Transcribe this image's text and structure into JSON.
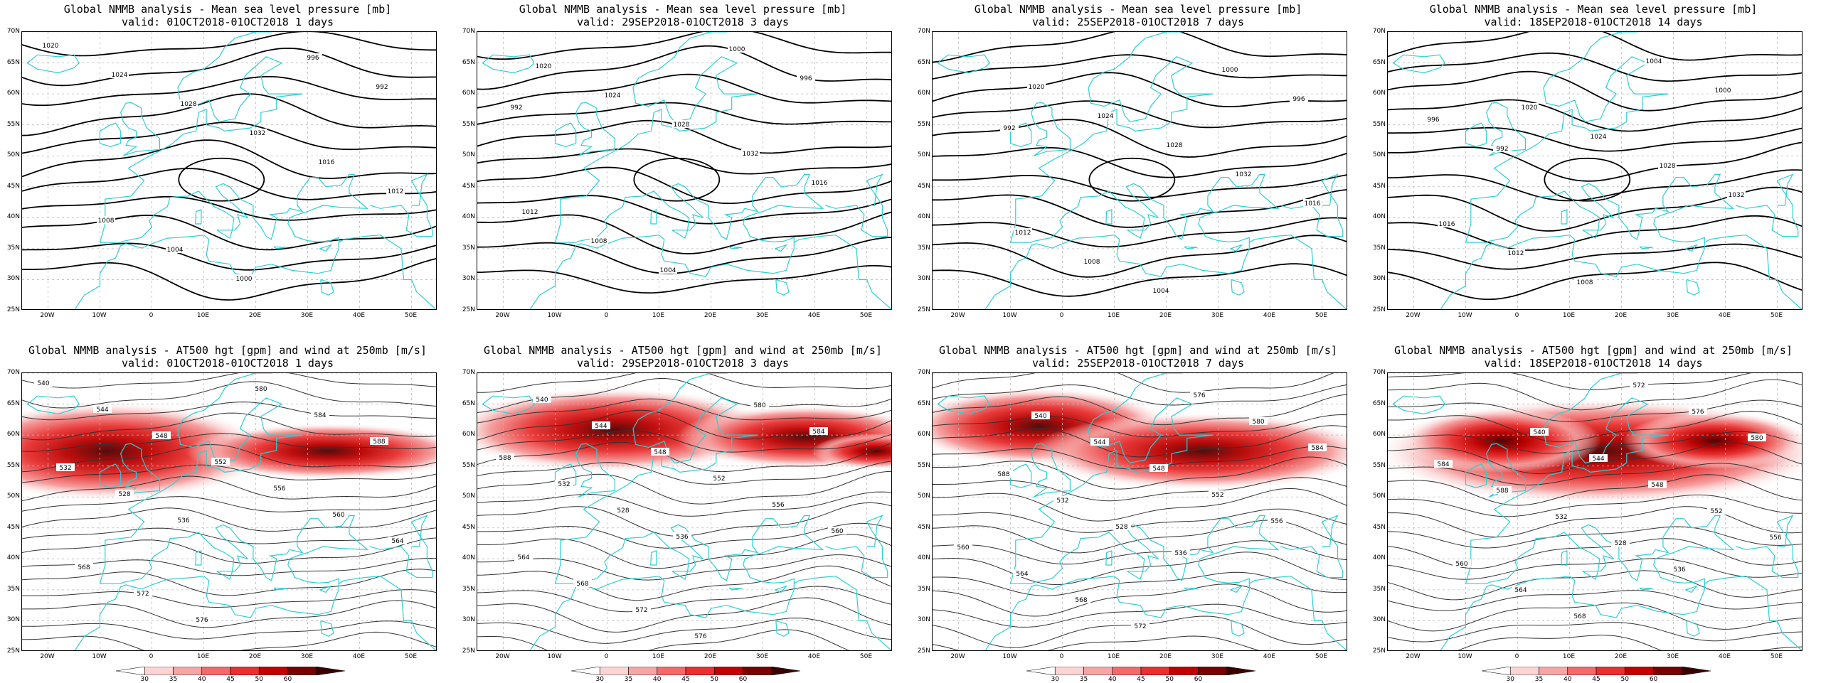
{
  "panels_top": [
    {
      "title": "Global NMMB analysis - Mean sea level pressure [mb]",
      "valid": "valid: 01OCT2018-01OCT2018  1 days"
    },
    {
      "title": "Global NMMB analysis - Mean sea level pressure [mb]",
      "valid": "valid: 29SEP2018-01OCT2018  3 days"
    },
    {
      "title": "Global NMMB analysis - Mean sea level pressure [mb]",
      "valid": "valid: 25SEP2018-01OCT2018  7 days"
    },
    {
      "title": "Global NMMB analysis - Mean sea level pressure [mb]",
      "valid": "valid: 18SEP2018-01OCT2018  14 days"
    }
  ],
  "panels_bottom": [
    {
      "title": "Global NMMB analysis - AT500 hgt [gpm] and wind at 250mb [m/s]",
      "valid": "valid: 01OCT2018-01OCT2018  1 days"
    },
    {
      "title": "Global NMMB analysis - AT500 hgt [gpm] and wind at 250mb [m/s]",
      "valid": "valid: 29SEP2018-01OCT2018  3 days"
    },
    {
      "title": "Global NMMB analysis - AT500 hgt [gpm] and wind at 250mb [m/s]",
      "valid": "valid: 25SEP2018-01OCT2018  7 days"
    },
    {
      "title": "Global NMMB analysis - AT500 hgt [gpm] and wind at 250mb [m/s]",
      "valid": "valid: 18SEP2018-01OCT2018  14 days"
    }
  ],
  "lat_labels": [
    "70N",
    "65N",
    "60N",
    "55N",
    "50N",
    "45N",
    "40N",
    "35N",
    "30N",
    "25N"
  ],
  "lon_labels": [
    "20W",
    "10W",
    "0",
    "10E",
    "20E",
    "30E",
    "40E",
    "50E"
  ],
  "colorbar_labels": [
    "30",
    "35",
    "40",
    "45",
    "50",
    "60"
  ],
  "colorbar_colors": [
    "#ffffff",
    "#fcd4d4",
    "#f9a5a5",
    "#f46a6a",
    "#e83030",
    "#c20000",
    "#7a0000",
    "#3a0000"
  ],
  "mslp_labels": [
    "1020",
    "1024",
    "1028",
    "1032",
    "1016",
    "1012",
    "1008",
    "1004",
    "1000",
    "996",
    "992"
  ],
  "hgt_labels": [
    "540",
    "544",
    "548",
    "552",
    "556",
    "560",
    "564",
    "568",
    "572",
    "576",
    "580",
    "584",
    "588",
    "532",
    "528",
    "536"
  ],
  "colors": {
    "coast": "#2ccfd2",
    "contour": "#000000",
    "grid": "#b9b9b9"
  }
}
